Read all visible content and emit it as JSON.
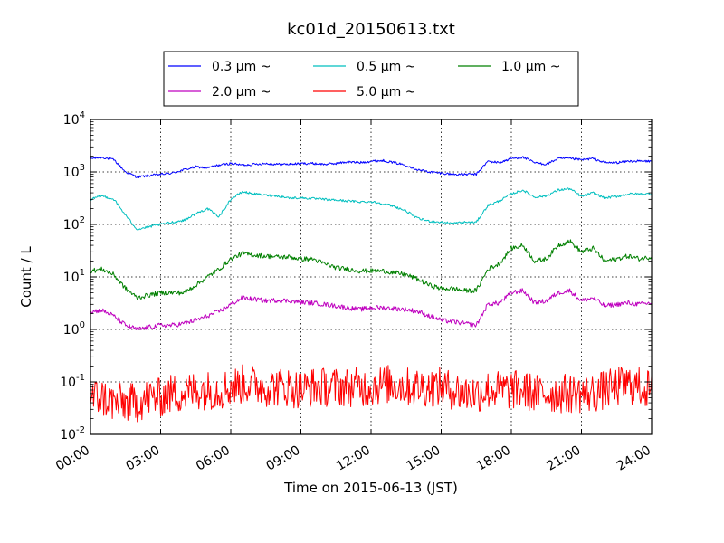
{
  "chart_data": {
    "type": "line",
    "title": "kc01d_20150613.txt",
    "xlabel": "Time on 2015-06-13 (JST)",
    "ylabel": "Count / L",
    "xlim": [
      "00:00",
      "24:00"
    ],
    "ylim": [
      0.01,
      10000
    ],
    "yscale": "log",
    "grid": true,
    "legend_position": "top-center",
    "x_ticks": [
      "00:00",
      "03:00",
      "06:00",
      "09:00",
      "12:00",
      "15:00",
      "18:00",
      "21:00",
      "24:00"
    ],
    "y_ticks": [
      {
        "base": "10",
        "exp": "-2"
      },
      {
        "base": "10",
        "exp": "-1"
      },
      {
        "base": "10",
        "exp": "0"
      },
      {
        "base": "10",
        "exp": "1"
      },
      {
        "base": "10",
        "exp": "2"
      },
      {
        "base": "10",
        "exp": "3"
      },
      {
        "base": "10",
        "exp": "4"
      }
    ],
    "x_hours": [
      0,
      0.5,
      1,
      1.5,
      2,
      2.5,
      3,
      3.5,
      4,
      4.5,
      5,
      5.5,
      6,
      6.5,
      7,
      7.5,
      8,
      8.5,
      9,
      9.5,
      10,
      10.5,
      11,
      11.5,
      12,
      12.5,
      13,
      13.5,
      14,
      14.5,
      15,
      15.5,
      16,
      16.5,
      17,
      17.5,
      18,
      18.5,
      19,
      19.5,
      20,
      20.5,
      21,
      21.5,
      22,
      22.5,
      23,
      23.5,
      24
    ],
    "series": [
      {
        "name": "0.3 μm ~",
        "color": "#0000ff",
        "noise": "low",
        "values": [
          1800,
          1900,
          1700,
          1000,
          800,
          850,
          900,
          950,
          1100,
          1250,
          1200,
          1350,
          1450,
          1350,
          1400,
          1450,
          1400,
          1400,
          1450,
          1450,
          1400,
          1450,
          1550,
          1500,
          1600,
          1650,
          1500,
          1350,
          1100,
          1000,
          950,
          900,
          900,
          900,
          1600,
          1500,
          1800,
          1900,
          1500,
          1400,
          1800,
          1800,
          1700,
          1800,
          1500,
          1500,
          1600,
          1600,
          1600
        ]
      },
      {
        "name": "0.5 μm ~",
        "color": "#00bfbf",
        "noise": "low",
        "values": [
          300,
          350,
          300,
          150,
          80,
          90,
          100,
          110,
          120,
          160,
          200,
          140,
          300,
          420,
          380,
          360,
          350,
          320,
          320,
          310,
          300,
          290,
          280,
          270,
          270,
          250,
          220,
          180,
          130,
          115,
          110,
          105,
          110,
          110,
          230,
          280,
          380,
          450,
          330,
          350,
          450,
          480,
          340,
          400,
          320,
          340,
          380,
          380,
          380
        ]
      },
      {
        "name": "1.0 μm ~",
        "color": "#008000",
        "noise": "mid",
        "values": [
          13,
          14,
          11,
          6,
          4,
          4.5,
          5,
          5,
          5,
          7,
          10,
          14,
          22,
          28,
          26,
          25,
          24,
          24,
          22,
          22,
          18,
          15,
          14,
          13,
          13,
          13,
          12,
          11,
          9,
          7,
          6,
          6,
          5.5,
          5.5,
          14,
          18,
          35,
          40,
          20,
          22,
          40,
          48,
          30,
          35,
          20,
          22,
          25,
          22,
          24
        ]
      },
      {
        "name": "2.0 μm ~",
        "color": "#bf00bf",
        "noise": "mid",
        "values": [
          2.2,
          2.3,
          1.8,
          1.2,
          1.0,
          1.1,
          1.2,
          1.2,
          1.3,
          1.5,
          1.8,
          2.2,
          3.0,
          4.0,
          3.8,
          3.5,
          3.6,
          3.5,
          3.3,
          3.2,
          3.0,
          2.8,
          2.6,
          2.4,
          2.6,
          2.6,
          2.5,
          2.4,
          2.2,
          1.8,
          1.5,
          1.4,
          1.3,
          1.2,
          3.0,
          3.2,
          5.0,
          5.5,
          3.2,
          3.5,
          5.0,
          5.5,
          3.5,
          4.0,
          2.8,
          3.0,
          3.2,
          3.0,
          3.2
        ]
      },
      {
        "name": "5.0 μm ~",
        "color": "#ff0000",
        "noise": "high",
        "values": [
          0.05,
          0.05,
          0.04,
          0.04,
          0.04,
          0.05,
          0.05,
          0.06,
          0.06,
          0.07,
          0.07,
          0.07,
          0.08,
          0.09,
          0.09,
          0.08,
          0.08,
          0.08,
          0.07,
          0.08,
          0.08,
          0.08,
          0.08,
          0.08,
          0.08,
          0.09,
          0.09,
          0.08,
          0.08,
          0.08,
          0.08,
          0.07,
          0.06,
          0.06,
          0.07,
          0.07,
          0.07,
          0.07,
          0.06,
          0.06,
          0.06,
          0.06,
          0.06,
          0.06,
          0.07,
          0.08,
          0.09,
          0.08,
          0.07
        ]
      }
    ]
  }
}
